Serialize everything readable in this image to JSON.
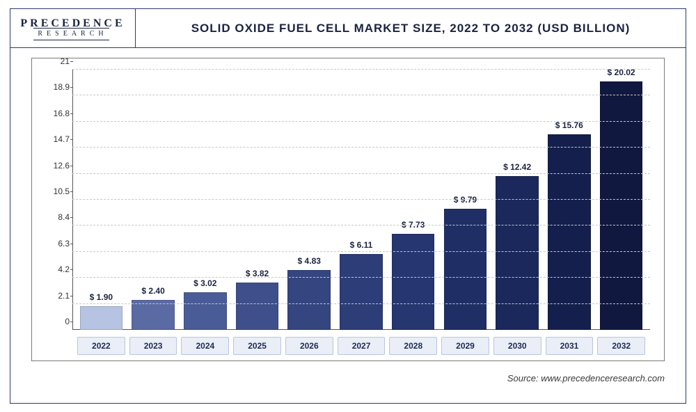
{
  "logo": {
    "top": "PRECEDENCE",
    "bottom": "RESEARCH"
  },
  "title": "SOLID OXIDE FUEL CELL MARKET SIZE, 2022 TO 2032 (USD BILLION)",
  "chart": {
    "type": "bar",
    "ylim": [
      0,
      21
    ],
    "ytick_step": 2.1,
    "yticks": [
      0,
      2.1,
      4.2,
      6.3,
      8.4,
      10.5,
      12.6,
      14.7,
      16.8,
      18.9,
      21
    ],
    "categories": [
      "2022",
      "2023",
      "2024",
      "2025",
      "2026",
      "2027",
      "2028",
      "2029",
      "2030",
      "2031",
      "2032"
    ],
    "values": [
      1.9,
      2.4,
      3.02,
      3.82,
      4.83,
      6.11,
      7.73,
      9.79,
      12.42,
      15.76,
      20.02
    ],
    "value_labels": [
      "$ 1.90",
      "$ 2.40",
      "$ 3.02",
      "$ 3.82",
      "$ 4.83",
      "$ 6.11",
      "$ 7.73",
      "$ 9.79",
      "$ 12.42",
      "$ 15.76",
      "$ 20.02"
    ],
    "bar_colors": [
      "#b7c3e2",
      "#5a6aa3",
      "#4a5c97",
      "#3f4f8b",
      "#344580",
      "#2c3d78",
      "#253670",
      "#1f2f66",
      "#1a285b",
      "#151f4d",
      "#101840"
    ],
    "grid_color": "#c8c8c8",
    "axis_color": "#555555",
    "label_fontsize": 12,
    "title_fontsize": 17,
    "bar_width": 0.88,
    "background_color": "#ffffff",
    "xlabel_bg": "#e9eef7",
    "xlabel_border": "#b8c6e0"
  },
  "source": "Source: www.precedenceresearch.com"
}
